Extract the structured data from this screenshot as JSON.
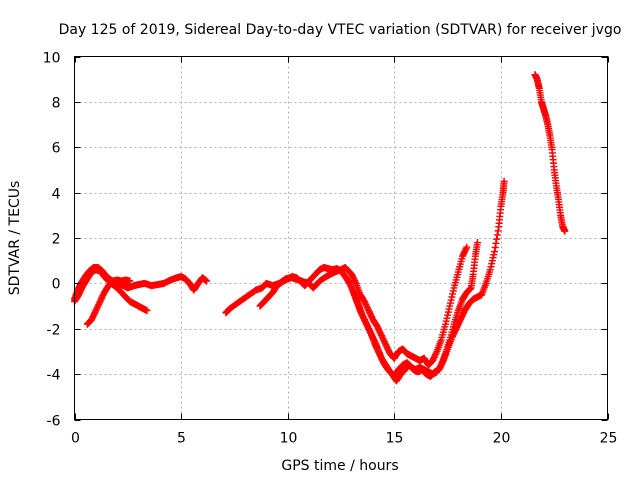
{
  "chart_data": {
    "type": "scatter",
    "title": "Day 125 of 2019, Sidereal Day-to-day VTEC variation (SDTVAR) for receiver jvgo",
    "xlabel": "GPS time / hours",
    "ylabel": "SDTVAR / TECUs",
    "xlim": [
      0,
      25
    ],
    "ylim": [
      -6,
      10
    ],
    "xticks": [
      0,
      5,
      10,
      15,
      20,
      25
    ],
    "yticks": [
      -6,
      -4,
      -2,
      0,
      2,
      4,
      6,
      8,
      10
    ],
    "grid": true,
    "marker": "+",
    "series": [
      {
        "name": "SDTVAR",
        "color": "#ff0000",
        "segments": [
          [
            [
              0.0,
              -0.7
            ],
            [
              0.15,
              -0.3
            ],
            [
              0.3,
              0.0
            ],
            [
              0.5,
              0.3
            ],
            [
              0.7,
              0.55
            ],
            [
              0.9,
              0.7
            ],
            [
              1.1,
              0.7
            ],
            [
              1.3,
              0.55
            ],
            [
              1.5,
              0.3
            ],
            [
              1.8,
              0.1
            ],
            [
              2.0,
              0.0
            ],
            [
              2.3,
              -0.1
            ],
            [
              2.5,
              -0.2
            ],
            [
              2.8,
              -0.1
            ],
            [
              3.0,
              -0.05
            ],
            [
              3.3,
              0.0
            ],
            [
              3.6,
              -0.1
            ],
            [
              3.9,
              -0.05
            ],
            [
              4.2,
              0.0
            ],
            [
              4.5,
              0.15
            ],
            [
              4.8,
              0.25
            ],
            [
              5.0,
              0.3
            ],
            [
              5.2,
              0.2
            ],
            [
              5.4,
              0.0
            ],
            [
              5.6,
              -0.3
            ],
            [
              5.8,
              0.0
            ],
            [
              6.0,
              0.25
            ],
            [
              6.2,
              0.1
            ]
          ],
          [
            [
              0.0,
              -0.8
            ],
            [
              0.2,
              -0.5
            ],
            [
              0.4,
              -0.1
            ],
            [
              0.6,
              0.2
            ],
            [
              0.8,
              0.5
            ],
            [
              1.0,
              0.6
            ],
            [
              1.2,
              0.55
            ],
            [
              1.4,
              0.3
            ],
            [
              1.6,
              0.1
            ],
            [
              1.8,
              -0.05
            ],
            [
              2.0,
              -0.2
            ],
            [
              2.2,
              -0.4
            ],
            [
              2.4,
              -0.6
            ],
            [
              2.6,
              -0.8
            ],
            [
              2.8,
              -0.9
            ],
            [
              3.0,
              -1.0
            ],
            [
              3.2,
              -1.1
            ],
            [
              3.4,
              -1.2
            ]
          ],
          [
            [
              0.6,
              -1.8
            ],
            [
              0.8,
              -1.6
            ],
            [
              1.0,
              -1.2
            ],
            [
              1.2,
              -0.8
            ],
            [
              1.4,
              -0.4
            ],
            [
              1.6,
              -0.1
            ],
            [
              1.8,
              0.1
            ],
            [
              2.0,
              0.15
            ],
            [
              2.2,
              0.1
            ],
            [
              2.4,
              0.15
            ],
            [
              2.6,
              0.1
            ]
          ],
          [
            [
              7.1,
              -1.3
            ],
            [
              7.3,
              -1.1
            ],
            [
              7.6,
              -0.9
            ],
            [
              7.9,
              -0.7
            ],
            [
              8.2,
              -0.5
            ],
            [
              8.5,
              -0.3
            ],
            [
              8.8,
              -0.2
            ],
            [
              9.0,
              0.0
            ],
            [
              9.3,
              -0.1
            ],
            [
              9.6,
              0.0
            ],
            [
              9.9,
              0.2
            ],
            [
              10.2,
              0.25
            ],
            [
              10.5,
              0.15
            ],
            [
              10.8,
              0.05
            ],
            [
              11.0,
              0.0
            ],
            [
              11.2,
              -0.2
            ],
            [
              11.5,
              0.1
            ],
            [
              11.8,
              0.3
            ],
            [
              12.0,
              0.4
            ],
            [
              12.2,
              0.5
            ],
            [
              12.5,
              0.6
            ],
            [
              12.7,
              0.7
            ],
            [
              13.0,
              0.4
            ],
            [
              13.2,
              0.0
            ],
            [
              13.4,
              -0.5
            ],
            [
              13.6,
              -0.8
            ],
            [
              13.8,
              -1.2
            ],
            [
              14.0,
              -1.6
            ],
            [
              14.2,
              -1.9
            ],
            [
              14.4,
              -2.3
            ],
            [
              14.6,
              -2.7
            ],
            [
              14.8,
              -3.1
            ],
            [
              15.0,
              -3.3
            ],
            [
              15.2,
              -3.0
            ],
            [
              15.4,
              -2.9
            ],
            [
              15.6,
              -3.1
            ],
            [
              15.8,
              -3.2
            ],
            [
              16.0,
              -3.3
            ],
            [
              16.2,
              -3.4
            ],
            [
              16.4,
              -3.3
            ],
            [
              16.6,
              -3.6
            ],
            [
              16.8,
              -3.4
            ],
            [
              17.0,
              -3.0
            ],
            [
              17.2,
              -2.5
            ],
            [
              17.4,
              -1.8
            ],
            [
              17.6,
              -1.0
            ],
            [
              17.8,
              -0.2
            ],
            [
              18.0,
              0.5
            ],
            [
              18.2,
              1.2
            ],
            [
              18.4,
              1.6
            ]
          ],
          [
            [
              8.7,
              -1.0
            ],
            [
              8.9,
              -0.8
            ],
            [
              9.1,
              -0.6
            ],
            [
              9.3,
              -0.4
            ],
            [
              9.5,
              -0.1
            ],
            [
              9.8,
              0.1
            ],
            [
              10.0,
              0.2
            ],
            [
              10.2,
              0.3
            ],
            [
              10.4,
              0.25
            ],
            [
              10.6,
              0.1
            ],
            [
              10.8,
              -0.1
            ],
            [
              11.0,
              0.1
            ],
            [
              11.3,
              0.4
            ],
            [
              11.5,
              0.6
            ],
            [
              11.7,
              0.7
            ],
            [
              11.9,
              0.65
            ],
            [
              12.1,
              0.6
            ],
            [
              12.3,
              0.65
            ],
            [
              12.5,
              0.55
            ],
            [
              12.7,
              0.3
            ],
            [
              12.9,
              0.0
            ],
            [
              13.1,
              -0.4
            ],
            [
              13.3,
              -0.9
            ],
            [
              13.5,
              -1.4
            ],
            [
              13.7,
              -1.8
            ],
            [
              13.9,
              -2.2
            ],
            [
              14.1,
              -2.7
            ],
            [
              14.3,
              -3.1
            ],
            [
              14.5,
              -3.5
            ],
            [
              14.7,
              -3.8
            ],
            [
              14.9,
              -4.0
            ],
            [
              15.1,
              -4.3
            ],
            [
              15.3,
              -4.0
            ],
            [
              15.5,
              -3.8
            ],
            [
              15.7,
              -3.6
            ],
            [
              15.9,
              -3.8
            ],
            [
              16.1,
              -3.9
            ],
            [
              16.3,
              -3.8
            ],
            [
              16.5,
              -4.0
            ],
            [
              16.7,
              -4.1
            ],
            [
              16.9,
              -3.9
            ],
            [
              17.1,
              -3.8
            ],
            [
              17.3,
              -3.4
            ],
            [
              17.5,
              -2.9
            ],
            [
              17.7,
              -2.4
            ],
            [
              17.9,
              -2.0
            ],
            [
              18.1,
              -1.6
            ],
            [
              18.3,
              -1.2
            ],
            [
              18.5,
              -0.9
            ],
            [
              18.7,
              -0.7
            ],
            [
              18.9,
              -0.6
            ],
            [
              19.1,
              -0.5
            ],
            [
              19.3,
              0.0
            ],
            [
              19.5,
              0.6
            ],
            [
              19.7,
              1.4
            ],
            [
              19.9,
              2.5
            ],
            [
              20.0,
              3.4
            ],
            [
              20.1,
              4.0
            ],
            [
              20.15,
              4.5
            ]
          ],
          [
            [
              13.0,
              -0.2
            ],
            [
              13.2,
              -0.7
            ],
            [
              13.4,
              -1.2
            ],
            [
              13.6,
              -1.6
            ],
            [
              13.8,
              -2.0
            ],
            [
              14.0,
              -2.4
            ],
            [
              14.2,
              -2.8
            ],
            [
              14.4,
              -3.3
            ],
            [
              14.6,
              -3.6
            ],
            [
              14.8,
              -3.9
            ],
            [
              15.0,
              -4.1
            ],
            [
              15.2,
              -3.8
            ],
            [
              15.4,
              -3.6
            ],
            [
              15.6,
              -3.5
            ],
            [
              15.8,
              -3.7
            ],
            [
              16.0,
              -3.8
            ],
            [
              16.2,
              -3.7
            ],
            [
              16.4,
              -3.8
            ],
            [
              16.6,
              -3.9
            ],
            [
              16.8,
              -4.0
            ],
            [
              17.0,
              -3.9
            ],
            [
              17.2,
              -3.6
            ],
            [
              17.4,
              -3.1
            ],
            [
              17.6,
              -2.5
            ],
            [
              17.8,
              -1.8
            ],
            [
              18.0,
              -1.2
            ],
            [
              18.2,
              -0.7
            ],
            [
              18.4,
              -0.4
            ],
            [
              18.6,
              -0.2
            ],
            [
              18.7,
              0.4
            ],
            [
              18.8,
              1.2
            ],
            [
              18.9,
              1.8
            ]
          ],
          [
            [
              21.6,
              9.2
            ],
            [
              21.7,
              9.0
            ],
            [
              21.8,
              8.6
            ],
            [
              21.9,
              8.0
            ],
            [
              22.0,
              7.7
            ],
            [
              22.1,
              7.4
            ],
            [
              22.2,
              7.0
            ],
            [
              22.3,
              6.5
            ],
            [
              22.4,
              5.9
            ],
            [
              22.5,
              5.0
            ],
            [
              22.6,
              4.3
            ],
            [
              22.7,
              3.7
            ],
            [
              22.8,
              3.0
            ],
            [
              22.9,
              2.5
            ],
            [
              23.0,
              2.3
            ]
          ]
        ]
      }
    ]
  }
}
